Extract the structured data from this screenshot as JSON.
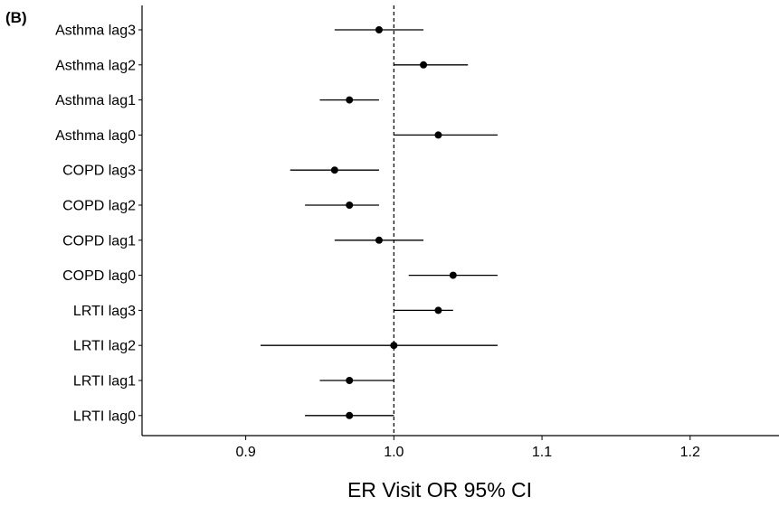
{
  "panel_label": "(B)",
  "chart_data": {
    "type": "scatter",
    "subtype": "forest",
    "xlabel": "ER Visit OR 95% CI",
    "ylabel": "",
    "xlim": [
      0.83,
      1.26
    ],
    "xticks": [
      0.9,
      1.0,
      1.1,
      1.2
    ],
    "xtick_labels": [
      "0.9",
      "1.0",
      "1.1",
      "1.2"
    ],
    "reference_line": 1.0,
    "grid": false,
    "rows": [
      {
        "label": "Asthma lag3",
        "or": 0.99,
        "lower": 0.96,
        "upper": 1.02
      },
      {
        "label": "Asthma lag2",
        "or": 1.02,
        "lower": 1.0,
        "upper": 1.05
      },
      {
        "label": "Asthma lag1",
        "or": 0.97,
        "lower": 0.95,
        "upper": 0.99
      },
      {
        "label": "Asthma lag0",
        "or": 1.03,
        "lower": 1.0,
        "upper": 1.07
      },
      {
        "label": "COPD lag3",
        "or": 0.96,
        "lower": 0.93,
        "upper": 0.99
      },
      {
        "label": "COPD lag2",
        "or": 0.97,
        "lower": 0.94,
        "upper": 0.99
      },
      {
        "label": "COPD lag1",
        "or": 0.99,
        "lower": 0.96,
        "upper": 1.02
      },
      {
        "label": "COPD lag0",
        "or": 1.04,
        "lower": 1.01,
        "upper": 1.07
      },
      {
        "label": "LRTI lag3",
        "or": 1.03,
        "lower": 1.0,
        "upper": 1.04
      },
      {
        "label": "LRTI lag2",
        "or": 1.0,
        "lower": 0.91,
        "upper": 1.07
      },
      {
        "label": "LRTI lag1",
        "or": 0.97,
        "lower": 0.95,
        "upper": 1.0
      },
      {
        "label": "LRTI lag0",
        "or": 0.97,
        "lower": 0.94,
        "upper": 1.0
      }
    ]
  }
}
